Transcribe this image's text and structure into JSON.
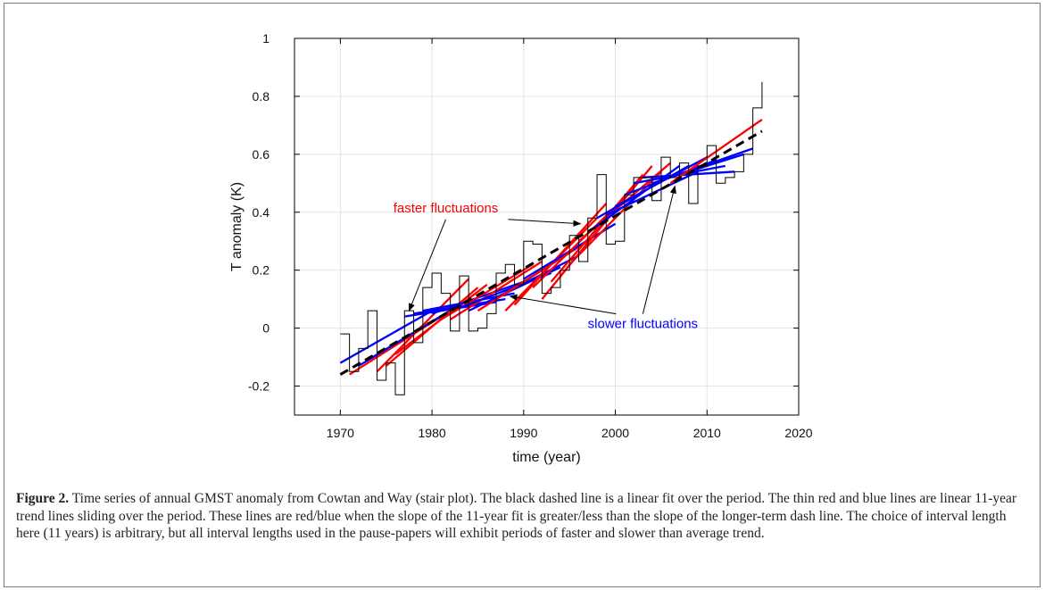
{
  "chart_data": {
    "type": "line",
    "xlabel": "time (year)",
    "ylabel": "T anomaly (K)",
    "xlim": [
      1965,
      2020
    ],
    "ylim": [
      -0.3,
      1
    ],
    "xticks": [
      1970,
      1980,
      1990,
      2000,
      2010,
      2020
    ],
    "yticks": [
      -0.2,
      0,
      0.2,
      0.4,
      0.6,
      0.8,
      1
    ],
    "ytick_labels": [
      "-0.2",
      "0",
      "0.2",
      "0.4",
      "0.6",
      "0.8",
      "1"
    ],
    "grid": true,
    "stair": {
      "x": [
        1970,
        1971,
        1972,
        1973,
        1974,
        1975,
        1976,
        1977,
        1978,
        1979,
        1980,
        1981,
        1982,
        1983,
        1984,
        1985,
        1986,
        1987,
        1988,
        1989,
        1990,
        1991,
        1992,
        1993,
        1994,
        1995,
        1996,
        1997,
        1998,
        1999,
        2000,
        2001,
        2002,
        2003,
        2004,
        2005,
        2006,
        2007,
        2008,
        2009,
        2010,
        2011,
        2012,
        2013,
        2014,
        2015,
        2016
      ],
      "y": [
        -0.02,
        -0.15,
        -0.07,
        0.06,
        -0.18,
        -0.12,
        -0.23,
        0.06,
        -0.05,
        0.14,
        0.19,
        0.12,
        -0.01,
        0.18,
        -0.01,
        0.0,
        0.05,
        0.19,
        0.22,
        0.15,
        0.3,
        0.29,
        0.12,
        0.14,
        0.2,
        0.32,
        0.23,
        0.38,
        0.53,
        0.29,
        0.3,
        0.46,
        0.52,
        0.52,
        0.44,
        0.59,
        0.52,
        0.57,
        0.43,
        0.56,
        0.63,
        0.5,
        0.52,
        0.54,
        0.6,
        0.76,
        0.85
      ],
      "color": "#000000"
    },
    "fit_line": {
      "x": [
        1970,
        2016
      ],
      "y": [
        -0.16,
        0.68
      ],
      "color": "#000000",
      "style": "dashed"
    },
    "trend_lines": [
      {
        "x": [
          1970,
          1980
        ],
        "y": [
          -0.12,
          0.06
        ],
        "color": "#0000ff"
      },
      {
        "x": [
          1971,
          1981
        ],
        "y": [
          -0.16,
          0.04
        ],
        "color": "#ff0000"
      },
      {
        "x": [
          1972,
          1982
        ],
        "y": [
          -0.13,
          0.06
        ],
        "color": "#0000ff"
      },
      {
        "x": [
          1973,
          1983
        ],
        "y": [
          -0.11,
          0.08
        ],
        "color": "#0000ff"
      },
      {
        "x": [
          1974,
          1984
        ],
        "y": [
          -0.15,
          0.17
        ],
        "color": "#ff0000"
      },
      {
        "x": [
          1975,
          1985
        ],
        "y": [
          -0.13,
          0.14
        ],
        "color": "#ff0000"
      },
      {
        "x": [
          1976,
          1986
        ],
        "y": [
          -0.09,
          0.15
        ],
        "color": "#ff0000"
      },
      {
        "x": [
          1977,
          1987
        ],
        "y": [
          0.04,
          0.09
        ],
        "color": "#0000ff"
      },
      {
        "x": [
          1978,
          1988
        ],
        "y": [
          0.05,
          0.1
        ],
        "color": "#0000ff"
      },
      {
        "x": [
          1979,
          1989
        ],
        "y": [
          0.06,
          0.12
        ],
        "color": "#0000ff"
      },
      {
        "x": [
          1980,
          1990
        ],
        "y": [
          0.05,
          0.16
        ],
        "color": "#0000ff"
      },
      {
        "x": [
          1981,
          1991
        ],
        "y": [
          0.03,
          0.22
        ],
        "color": "#ff0000"
      },
      {
        "x": [
          1982,
          1992
        ],
        "y": [
          0.03,
          0.23
        ],
        "color": "#ff0000"
      },
      {
        "x": [
          1983,
          1993
        ],
        "y": [
          0.07,
          0.19
        ],
        "color": "#0000ff"
      },
      {
        "x": [
          1984,
          1994
        ],
        "y": [
          0.06,
          0.21
        ],
        "color": "#0000ff"
      },
      {
        "x": [
          1985,
          1995
        ],
        "y": [
          0.06,
          0.26
        ],
        "color": "#ff0000"
      },
      {
        "x": [
          1986,
          1996
        ],
        "y": [
          0.09,
          0.25
        ],
        "color": "#0000ff"
      },
      {
        "x": [
          1987,
          1997
        ],
        "y": [
          0.1,
          0.3
        ],
        "color": "#ff0000"
      },
      {
        "x": [
          1988,
          1998
        ],
        "y": [
          0.06,
          0.38
        ],
        "color": "#ff0000"
      },
      {
        "x": [
          1989,
          1999
        ],
        "y": [
          0.08,
          0.43
        ],
        "color": "#ff0000"
      },
      {
        "x": [
          1990,
          2000
        ],
        "y": [
          0.17,
          0.36
        ],
        "color": "#0000ff"
      },
      {
        "x": [
          1991,
          2001
        ],
        "y": [
          0.14,
          0.45
        ],
        "color": "#ff0000"
      },
      {
        "x": [
          1992,
          2002
        ],
        "y": [
          0.1,
          0.49
        ],
        "color": "#ff0000"
      },
      {
        "x": [
          1993,
          2003
        ],
        "y": [
          0.16,
          0.53
        ],
        "color": "#ff0000"
      },
      {
        "x": [
          1994,
          2004
        ],
        "y": [
          0.18,
          0.56
        ],
        "color": "#ff0000"
      },
      {
        "x": [
          1995,
          2005
        ],
        "y": [
          0.22,
          0.54
        ],
        "color": "#ff0000"
      },
      {
        "x": [
          1996,
          2006
        ],
        "y": [
          0.3,
          0.57
        ],
        "color": "#ff0000"
      },
      {
        "x": [
          1997,
          2007
        ],
        "y": [
          0.33,
          0.56
        ],
        "color": "#0000ff"
      },
      {
        "x": [
          1998,
          2008
        ],
        "y": [
          0.38,
          0.56
        ],
        "color": "#0000ff"
      },
      {
        "x": [
          1999,
          2009
        ],
        "y": [
          0.39,
          0.54
        ],
        "color": "#0000ff"
      },
      {
        "x": [
          2000,
          2010
        ],
        "y": [
          0.42,
          0.59
        ],
        "color": "#0000ff"
      },
      {
        "x": [
          2001,
          2011
        ],
        "y": [
          0.46,
          0.58
        ],
        "color": "#0000ff"
      },
      {
        "x": [
          2002,
          2012
        ],
        "y": [
          0.5,
          0.56
        ],
        "color": "#0000ff"
      },
      {
        "x": [
          2003,
          2013
        ],
        "y": [
          0.52,
          0.54
        ],
        "color": "#0000ff"
      },
      {
        "x": [
          2004,
          2014
        ],
        "y": [
          0.5,
          0.6
        ],
        "color": "#0000ff"
      },
      {
        "x": [
          2005,
          2015
        ],
        "y": [
          0.51,
          0.62
        ],
        "color": "#0000ff"
      },
      {
        "x": [
          2006,
          2016
        ],
        "y": [
          0.5,
          0.72
        ],
        "color": "#ff0000"
      }
    ],
    "annotations": [
      {
        "text": "faster fluctuations",
        "color": "#ff0000",
        "x": 1981.5,
        "y": 0.4,
        "arrows": [
          [
            1977.5,
            0.06
          ],
          [
            1996.2,
            0.36
          ]
        ]
      },
      {
        "text": "slower fluctuations",
        "color": "#0000ff",
        "x": 2003,
        "y": 0.0,
        "arrows": [
          [
            1988.5,
            0.11
          ],
          [
            2006.5,
            0.49
          ]
        ]
      }
    ]
  },
  "caption": {
    "label": "Figure 2.",
    "text": " Time series of annual GMST anomaly from Cowtan and Way (stair plot). The black dashed line is a linear fit over the period. The thin red and blue lines are linear 11-year trend lines sliding over the period. These lines are red/blue when the slope of the 11-year fit is greater/less than the slope of the longer-term dash line. The choice of interval length here (11 years) is arbitrary, but all interval lengths used in the pause-papers will exhibit periods of faster and slower than average trend."
  }
}
